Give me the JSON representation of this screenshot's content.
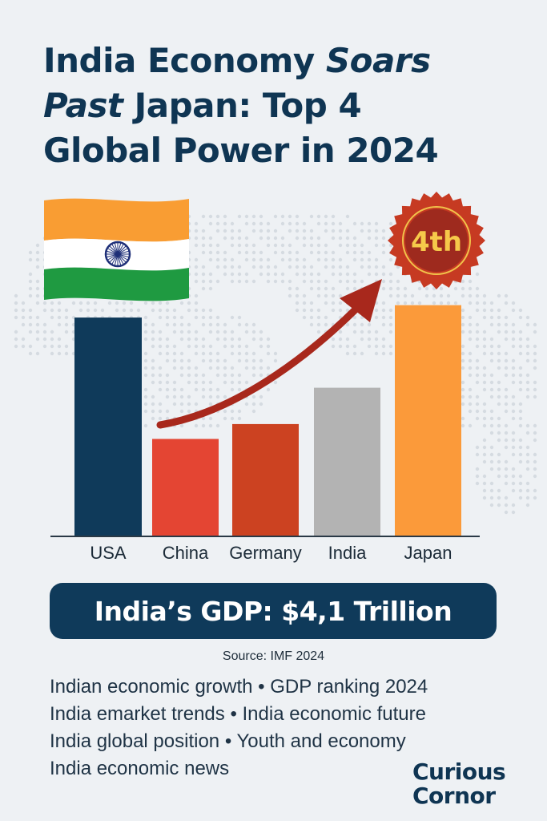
{
  "title": {
    "line1_a": "India Economy ",
    "line1_b": "Soars",
    "line2_a": "Past",
    "line2_b": " Japan: Top 4",
    "line3": "Global Power in 2024"
  },
  "badge": {
    "text": "4th"
  },
  "colors": {
    "usa": "#0f3a5a",
    "china": "#e44533",
    "germany": "#cc4221",
    "india": "#b3b3b3",
    "japan": "#fb9a3a",
    "arrow": "#a8281c",
    "badge_outer": "#c63a22",
    "badge_inner": "#9e2a1e",
    "badge_text": "#f6c94a"
  },
  "chart_data": {
    "type": "bar",
    "title": "",
    "xlabel": "",
    "ylabel": "",
    "categories": [
      "USA",
      "China",
      "Germany",
      "India",
      "Japan"
    ],
    "values": [
      26.5,
      11.8,
      13.6,
      18.0,
      28.0
    ],
    "ylim": [
      0,
      30
    ],
    "grid": false,
    "legend": "none",
    "annotation": "4th"
  },
  "gdp": {
    "text": "India’s GDP: $4,1 Trillion"
  },
  "source": "Source: IMF 2024",
  "tags": [
    "Indian economic growth • GDP ranking 2024",
    "India emarket trends • India economic future",
    "India global position • Youth and economy",
    "India economic news"
  ],
  "brand": {
    "line1": "Curious",
    "line2": "Cornor"
  }
}
